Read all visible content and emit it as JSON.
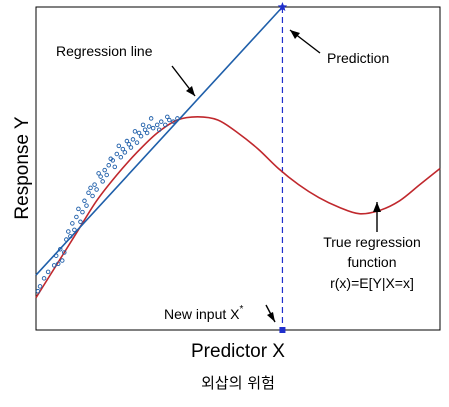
{
  "chart_data": {
    "type": "scatter",
    "title": "",
    "xlabel": "Predictor X",
    "ylabel": "Response Y",
    "caption": "외삽의 위험",
    "xlim": [
      0,
      100
    ],
    "ylim": [
      0,
      100
    ],
    "grid": false,
    "ticks": false,
    "colors": {
      "regression_line": "#1f5faa",
      "true_function": "#c0282d",
      "points": "#1f5faa",
      "prediction_marker": "#1f2fcc",
      "new_input_marker": "#1f2fcc"
    },
    "observed_points": [
      [
        0.5,
        12.0
      ],
      [
        1.0,
        13.5
      ],
      [
        2.0,
        16.0
      ],
      [
        3.0,
        18.0
      ],
      [
        4.5,
        20.0
      ],
      [
        5.0,
        23.0
      ],
      [
        5.5,
        20.5
      ],
      [
        6.0,
        25.0
      ],
      [
        7.0,
        24.0
      ],
      [
        7.5,
        28.0
      ],
      [
        8.0,
        30.5
      ],
      [
        8.5,
        29.0
      ],
      [
        9.0,
        33.0
      ],
      [
        10.0,
        35.0
      ],
      [
        10.5,
        37.5
      ],
      [
        11.0,
        33.5
      ],
      [
        11.5,
        36.5
      ],
      [
        12.0,
        40.0
      ],
      [
        12.5,
        38.5
      ],
      [
        13.0,
        42.5
      ],
      [
        14.0,
        41.5
      ],
      [
        14.5,
        45.0
      ],
      [
        15.0,
        43.5
      ],
      [
        16.0,
        47.5
      ],
      [
        16.5,
        46.0
      ],
      [
        17.0,
        49.5
      ],
      [
        17.5,
        48.0
      ],
      [
        18.0,
        51.0
      ],
      [
        19.0,
        52.5
      ],
      [
        19.5,
        50.5
      ],
      [
        20.0,
        54.5
      ],
      [
        21.0,
        53.5
      ],
      [
        21.5,
        56.0
      ],
      [
        22.0,
        55.0
      ],
      [
        23.0,
        57.5
      ],
      [
        23.5,
        56.5
      ],
      [
        24.0,
        59.0
      ],
      [
        25.0,
        58.0
      ],
      [
        25.5,
        61.0
      ],
      [
        26.0,
        60.0
      ],
      [
        27.0,
        62.0
      ],
      [
        27.5,
        61.0
      ],
      [
        28.0,
        63.0
      ],
      [
        29.0,
        62.5
      ],
      [
        30.0,
        63.5
      ],
      [
        30.5,
        62.0
      ],
      [
        31.0,
        64.5
      ],
      [
        32.0,
        63.5
      ],
      [
        33.0,
        65.0
      ],
      [
        34.0,
        64.5
      ],
      [
        35.0,
        65.5
      ],
      [
        6.5,
        21.5
      ],
      [
        9.5,
        31.0
      ],
      [
        13.5,
        44.0
      ],
      [
        18.5,
        53.0
      ],
      [
        22.5,
        58.5
      ],
      [
        26.5,
        63.5
      ],
      [
        15.5,
        48.5
      ],
      [
        20.5,
        57.0
      ],
      [
        24.5,
        61.5
      ],
      [
        28.5,
        65.5
      ],
      [
        32.5,
        66.0
      ]
    ],
    "true_regression_function": {
      "label": [
        "True regression",
        "function",
        "r(x)=E[Y|X=x]"
      ],
      "x": [
        0,
        5,
        10,
        15,
        20,
        25,
        30,
        35,
        40,
        45,
        50,
        55,
        60,
        65,
        70,
        75,
        80,
        85,
        90,
        95,
        100
      ],
      "y": [
        10,
        20,
        30,
        40,
        48,
        55,
        61,
        65,
        66,
        65,
        61,
        56,
        50,
        45,
        41,
        38,
        36,
        37,
        40,
        45,
        50
      ]
    },
    "regression_line": {
      "label": "Regression line",
      "x": [
        0,
        61
      ],
      "y": [
        17,
        100
      ]
    },
    "extrapolation": {
      "new_input_label": "New input X",
      "new_input_superscript": "*",
      "x_star": 61,
      "prediction_label": "Prediction",
      "prediction_y": 100
    }
  }
}
